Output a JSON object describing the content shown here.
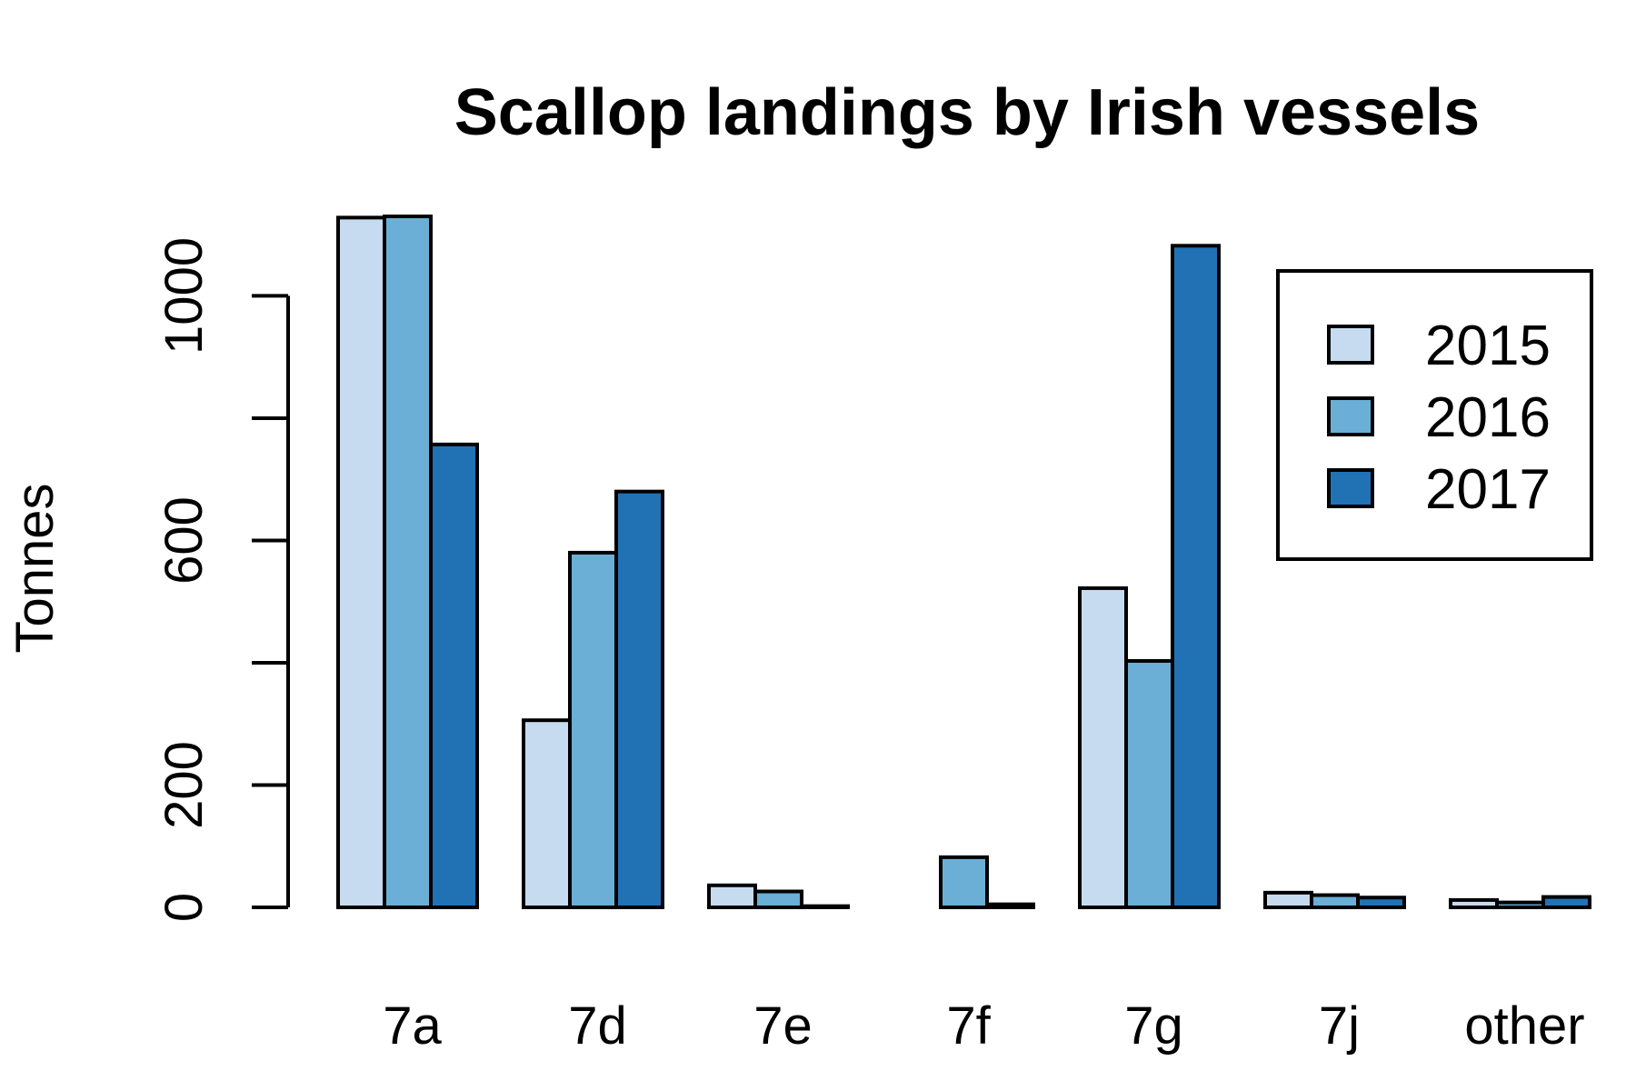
{
  "chart_data": {
    "type": "bar",
    "title": "Scallop landings by Irish vessels",
    "xlabel": "",
    "ylabel": "Tonnes",
    "categories": [
      "7a",
      "7d",
      "7e",
      "7f",
      "7g",
      "7j",
      "other"
    ],
    "series": [
      {
        "name": "2015",
        "color": "#c6dbef",
        "values": [
          1128,
          306,
          36,
          0,
          522,
          24,
          12
        ]
      },
      {
        "name": "2016",
        "color": "#6baed6",
        "values": [
          1130,
          580,
          26,
          82,
          403,
          20,
          8
        ]
      },
      {
        "name": "2017",
        "color": "#2171b5",
        "values": [
          757,
          680,
          2,
          5,
          1082,
          16,
          17
        ]
      }
    ],
    "yticks": [
      0,
      200,
      600,
      1000
    ],
    "ylim": [
      0,
      1130
    ],
    "grid": false,
    "legend_position": "top-right"
  }
}
